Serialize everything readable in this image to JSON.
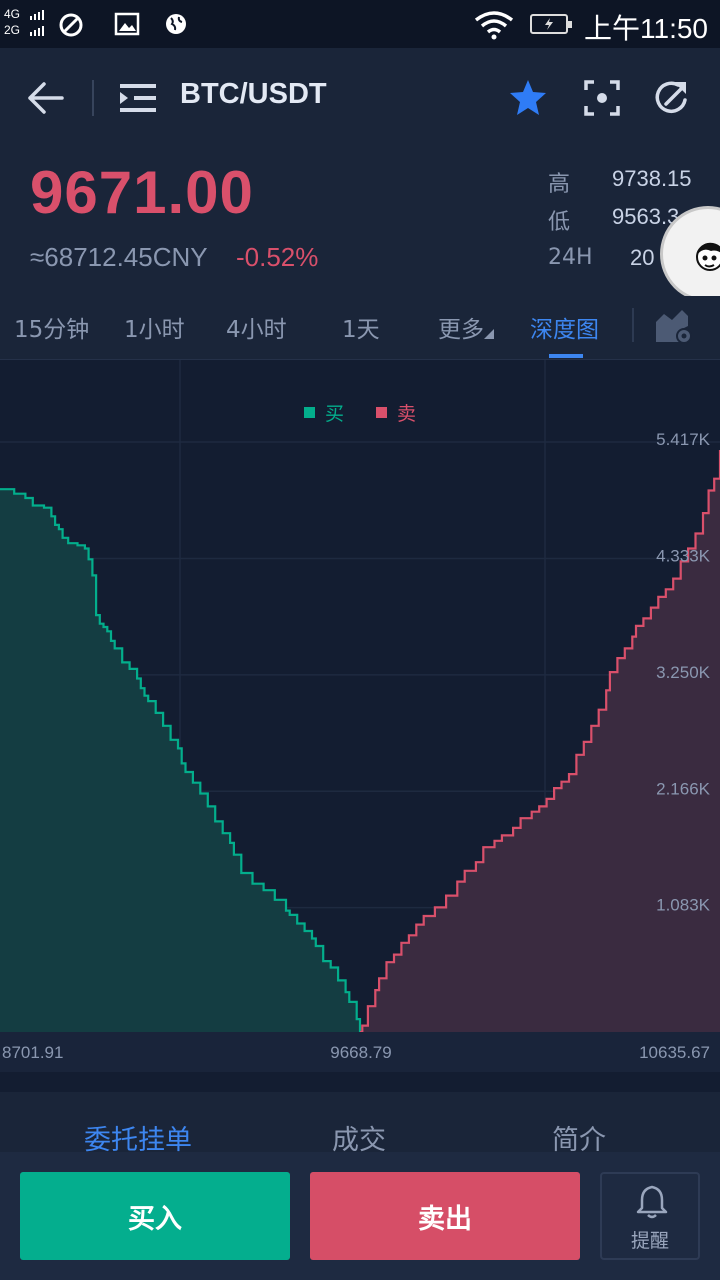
{
  "status_bar": {
    "network_top": "4G",
    "network_bottom": "2G",
    "time": "上午11:50",
    "icons": [
      "signal-icon",
      "do-not-disturb-icon",
      "image-icon",
      "globe-icon",
      "wifi-icon",
      "battery-charging-icon"
    ]
  },
  "header": {
    "pair": "BTC/USDT",
    "favorite_color": "#2f7cf6"
  },
  "ticker": {
    "price": "9671.00",
    "cny": "≈68712.45CNY",
    "change": "-0.52%",
    "price_color": "#d9506b",
    "stats": [
      {
        "label": "高",
        "value": "9738.15"
      },
      {
        "label": "低",
        "value": "9563.3"
      },
      {
        "label": "24H",
        "value": "20"
      }
    ]
  },
  "tabs": [
    {
      "label": "15分钟",
      "active": false
    },
    {
      "label": "1小时",
      "active": false
    },
    {
      "label": "4小时",
      "active": false
    },
    {
      "label": "1天",
      "active": false
    },
    {
      "label": "更多",
      "active": false
    },
    {
      "label": "深度图",
      "active": true
    }
  ],
  "chart_data": {
    "type": "area",
    "legend": [
      {
        "name": "买",
        "color": "#03ae8c"
      },
      {
        "name": "卖",
        "color": "#d9506b"
      }
    ],
    "x_ticks": [
      "8701.91",
      "9668.79",
      "10635.67"
    ],
    "xlim": [
      8701.91,
      10635.67
    ],
    "y_ticks": [
      "5.417K",
      "4.333K",
      "3.250K",
      "2.166K",
      "1.083K"
    ],
    "ylim": [
      0,
      5417
    ],
    "series": [
      {
        "name": "买",
        "x": [
          8701.91,
          8720,
          8740,
          8770,
          8790,
          8820,
          8840,
          8850,
          8860,
          8870,
          8885,
          8910,
          8930,
          8940,
          8950,
          8960,
          8970,
          8980,
          8990,
          9000,
          9010,
          9030,
          9050,
          9070,
          9080,
          9090,
          9100,
          9120,
          9140,
          9160,
          9180,
          9190,
          9200,
          9220,
          9240,
          9260,
          9280,
          9300,
          9320,
          9330,
          9350,
          9380,
          9410,
          9440,
          9470,
          9480,
          9500,
          9520,
          9540,
          9550,
          9570,
          9590,
          9610,
          9630,
          9640,
          9660,
          9668.79
        ],
        "values": [
          5052,
          5052,
          5010,
          4970,
          4900,
          4880,
          4800,
          4720,
          4680,
          4600,
          4550,
          4530,
          4500,
          4400,
          4250,
          3880,
          3800,
          3770,
          3730,
          3640,
          3570,
          3440,
          3380,
          3290,
          3200,
          3130,
          3080,
          2970,
          2850,
          2720,
          2640,
          2500,
          2420,
          2320,
          2220,
          2100,
          1960,
          1850,
          1760,
          1650,
          1480,
          1380,
          1320,
          1230,
          1130,
          1090,
          1010,
          940,
          870,
          800,
          660,
          600,
          480,
          370,
          280,
          120,
          0
        ]
      },
      {
        "name": "卖",
        "x": [
          9668.79,
          9675,
          9690,
          9710,
          9720,
          9740,
          9760,
          9780,
          9800,
          9820,
          9840,
          9870,
          9900,
          9930,
          9950,
          9980,
          10000,
          10030,
          10050,
          10080,
          10100,
          10130,
          10150,
          10170,
          10190,
          10210,
          10230,
          10250,
          10270,
          10290,
          10310,
          10330,
          10340,
          10360,
          10380,
          10400,
          10410,
          10430,
          10450,
          10470,
          10490,
          10510,
          10530,
          10550,
          10570,
          10590,
          10605,
          10620,
          10635.67
        ],
        "values": [
          0,
          60,
          240,
          390,
          500,
          650,
          720,
          830,
          900,
          1000,
          1080,
          1160,
          1270,
          1400,
          1500,
          1580,
          1720,
          1780,
          1830,
          1900,
          1990,
          2050,
          2100,
          2170,
          2270,
          2330,
          2400,
          2580,
          2700,
          2850,
          3000,
          3180,
          3350,
          3480,
          3570,
          3680,
          3780,
          3850,
          3950,
          4050,
          4120,
          4220,
          4380,
          4500,
          4640,
          4830,
          5040,
          5150,
          5417
        ]
      }
    ],
    "grid": true
  },
  "bottom_tabs": [
    {
      "label": "委托挂单",
      "active": true
    },
    {
      "label": "成交",
      "active": false
    },
    {
      "label": "简介",
      "active": false
    }
  ],
  "actions": {
    "buy": "买入",
    "sell": "卖出",
    "alert": "提醒"
  }
}
